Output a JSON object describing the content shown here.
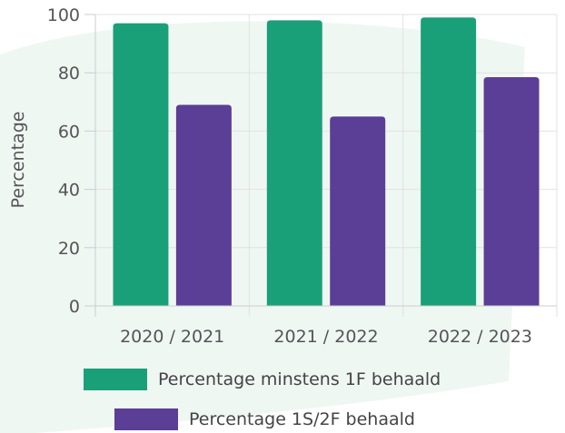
{
  "chart_data": {
    "type": "bar",
    "categories": [
      "2020 / 2021",
      "2021 / 2022",
      "2022 / 2023"
    ],
    "series": [
      {
        "name": "Percentage minstens 1F behaald",
        "values": [
          97,
          98,
          99
        ],
        "color": "#1aa078"
      },
      {
        "name": "Percentage 1S/2F behaald",
        "values": [
          69,
          65,
          78.5
        ],
        "color": "#5b3e96"
      }
    ],
    "ylabel": "Percentage",
    "xlabel": "",
    "ylim": [
      0,
      100
    ],
    "yticks": [
      0,
      20,
      40,
      60,
      80,
      100
    ],
    "grid": true,
    "legend_position": "bottom"
  }
}
